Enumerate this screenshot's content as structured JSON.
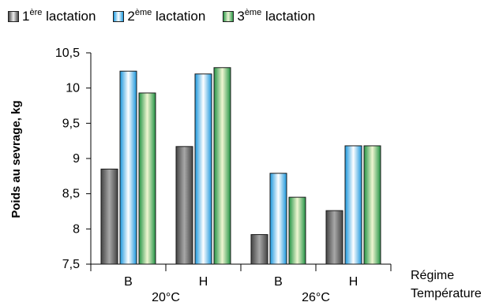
{
  "legend": {
    "items": [
      {
        "prefix": "1",
        "sup": "ère",
        "suffix": " lactation"
      },
      {
        "prefix": "2",
        "sup": "ème",
        "suffix": " lactation"
      },
      {
        "prefix": "3",
        "sup": "ème",
        "suffix": " lactation"
      }
    ]
  },
  "chart_data": {
    "type": "bar",
    "ylabel": "Poids au sevrage, kg",
    "ylim": [
      7.5,
      10.5
    ],
    "yticks": [
      "7,5",
      "8",
      "8,5",
      "9",
      "9,5",
      "10",
      "10,5"
    ],
    "categories": [
      "B",
      "H",
      "B",
      "H"
    ],
    "groups": [
      "20°C",
      "26°C"
    ],
    "axis_labels_right": [
      "Régime",
      "Température"
    ],
    "series": [
      {
        "name": "1ère lactation",
        "values": [
          8.85,
          9.17,
          7.92,
          8.26
        ]
      },
      {
        "name": "2ème lactation",
        "values": [
          10.24,
          10.2,
          8.79,
          9.18
        ]
      },
      {
        "name": "3ème lactation",
        "values": [
          9.93,
          10.29,
          8.45,
          9.18
        ]
      }
    ],
    "colors": [
      "#4a4a4a",
      "#1e9be0",
      "#2e9a4a"
    ],
    "grid": false
  }
}
